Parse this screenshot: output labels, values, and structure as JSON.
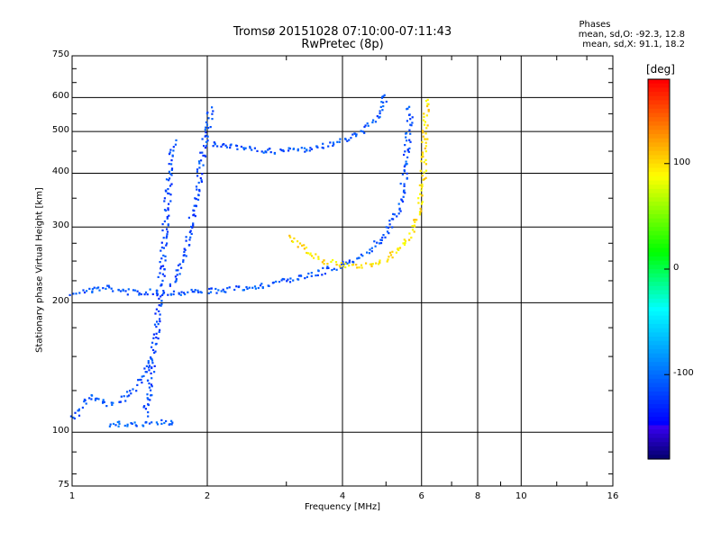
{
  "header": {
    "title_line1": "Tromsø 20151028 07:10:00-07:11:43",
    "title_line2": "RwPretec (8p)"
  },
  "phases": {
    "title": "Phases",
    "o_label": "mean, sd,O:",
    "o_values": "-92.3, 12.8",
    "x_label": "mean, sd,X:",
    "x_values": "91.1, 18.2"
  },
  "colorbar": {
    "unit": "[deg]",
    "ticks": [
      "100",
      "0",
      "-100"
    ],
    "tick_values": [
      100,
      0,
      -100
    ],
    "range": [
      -180,
      180
    ]
  },
  "chart_data": {
    "type": "scatter",
    "title": "Tromsø 20151028 07:10:00-07:11:43",
    "subtitle": "RwPretec (8p)",
    "xlabel": "Frequency [MHz]",
    "ylabel": "Stationary phase Virtual Height [km]",
    "x_scale": "log",
    "y_scale": "log",
    "xlim": [
      1,
      16
    ],
    "ylim": [
      75,
      750
    ],
    "x_ticks": [
      1,
      2,
      4,
      6,
      8,
      10,
      16
    ],
    "y_ticks": [
      75,
      100,
      200,
      300,
      400,
      500,
      600,
      750
    ],
    "grid": true,
    "color_by": "phase [deg]",
    "color_range": [
      -180,
      180
    ],
    "traces": [
      {
        "phase": -110,
        "points": [
          [
            1.0,
            212
          ],
          [
            1.1,
            215
          ],
          [
            1.2,
            218
          ],
          [
            1.3,
            214
          ],
          [
            1.4,
            212
          ],
          [
            1.5,
            213
          ],
          [
            1.6,
            212
          ],
          [
            1.7,
            212
          ],
          [
            1.8,
            213
          ],
          [
            1.9,
            214
          ],
          [
            2.0,
            214
          ],
          [
            2.3,
            216
          ],
          [
            2.6,
            220
          ],
          [
            3.0,
            226
          ],
          [
            3.3,
            232
          ],
          [
            3.6,
            238
          ],
          [
            4.0,
            246
          ],
          [
            4.3,
            255
          ],
          [
            4.6,
            268
          ],
          [
            4.9,
            285
          ],
          [
            5.1,
            305
          ],
          [
            5.3,
            330
          ],
          [
            5.4,
            360
          ],
          [
            5.5,
            410
          ],
          [
            5.55,
            460
          ],
          [
            5.6,
            520
          ],
          [
            5.62,
            580
          ]
        ]
      },
      {
        "phase": -115,
        "points": [
          [
            1.45,
            110
          ],
          [
            1.5,
            140
          ],
          [
            1.55,
            190
          ],
          [
            1.58,
            240
          ],
          [
            1.6,
            290
          ],
          [
            1.62,
            340
          ],
          [
            1.64,
            390
          ],
          [
            1.66,
            440
          ],
          [
            1.68,
            480
          ]
        ]
      },
      {
        "phase": -115,
        "points": [
          [
            1.65,
            220
          ],
          [
            1.7,
            230
          ],
          [
            1.75,
            250
          ],
          [
            1.8,
            280
          ],
          [
            1.85,
            320
          ],
          [
            1.9,
            380
          ],
          [
            1.95,
            450
          ],
          [
            2.0,
            520
          ],
          [
            2.03,
            580
          ]
        ]
      },
      {
        "phase": -110,
        "points": [
          [
            2.0,
            470
          ],
          [
            2.3,
            462
          ],
          [
            2.6,
            455
          ],
          [
            2.9,
            452
          ],
          [
            3.2,
            455
          ],
          [
            3.5,
            462
          ],
          [
            3.8,
            472
          ],
          [
            4.1,
            485
          ],
          [
            4.4,
            505
          ],
          [
            4.7,
            540
          ],
          [
            4.9,
            580
          ],
          [
            5.0,
            620
          ]
        ]
      },
      {
        "phase": 100,
        "points": [
          [
            3.0,
            285
          ],
          [
            3.3,
            265
          ],
          [
            3.6,
            252
          ],
          [
            4.0,
            245
          ],
          [
            4.4,
            245
          ],
          [
            4.8,
            250
          ],
          [
            5.2,
            262
          ],
          [
            5.6,
            285
          ],
          [
            5.9,
            330
          ],
          [
            6.0,
            380
          ],
          [
            6.05,
            440
          ],
          [
            6.1,
            520
          ],
          [
            6.1,
            600
          ]
        ]
      },
      {
        "phase": -110,
        "points": [
          [
            1.0,
            108
          ],
          [
            1.05,
            115
          ],
          [
            1.1,
            122
          ],
          [
            1.2,
            116
          ],
          [
            1.3,
            120
          ],
          [
            1.4,
            130
          ],
          [
            1.5,
            150
          ]
        ]
      },
      {
        "phase": -105,
        "points": [
          [
            1.2,
            105
          ],
          [
            1.3,
            105
          ],
          [
            1.4,
            105
          ],
          [
            1.5,
            106
          ],
          [
            1.6,
            106
          ],
          [
            1.7,
            106
          ]
        ]
      }
    ]
  }
}
